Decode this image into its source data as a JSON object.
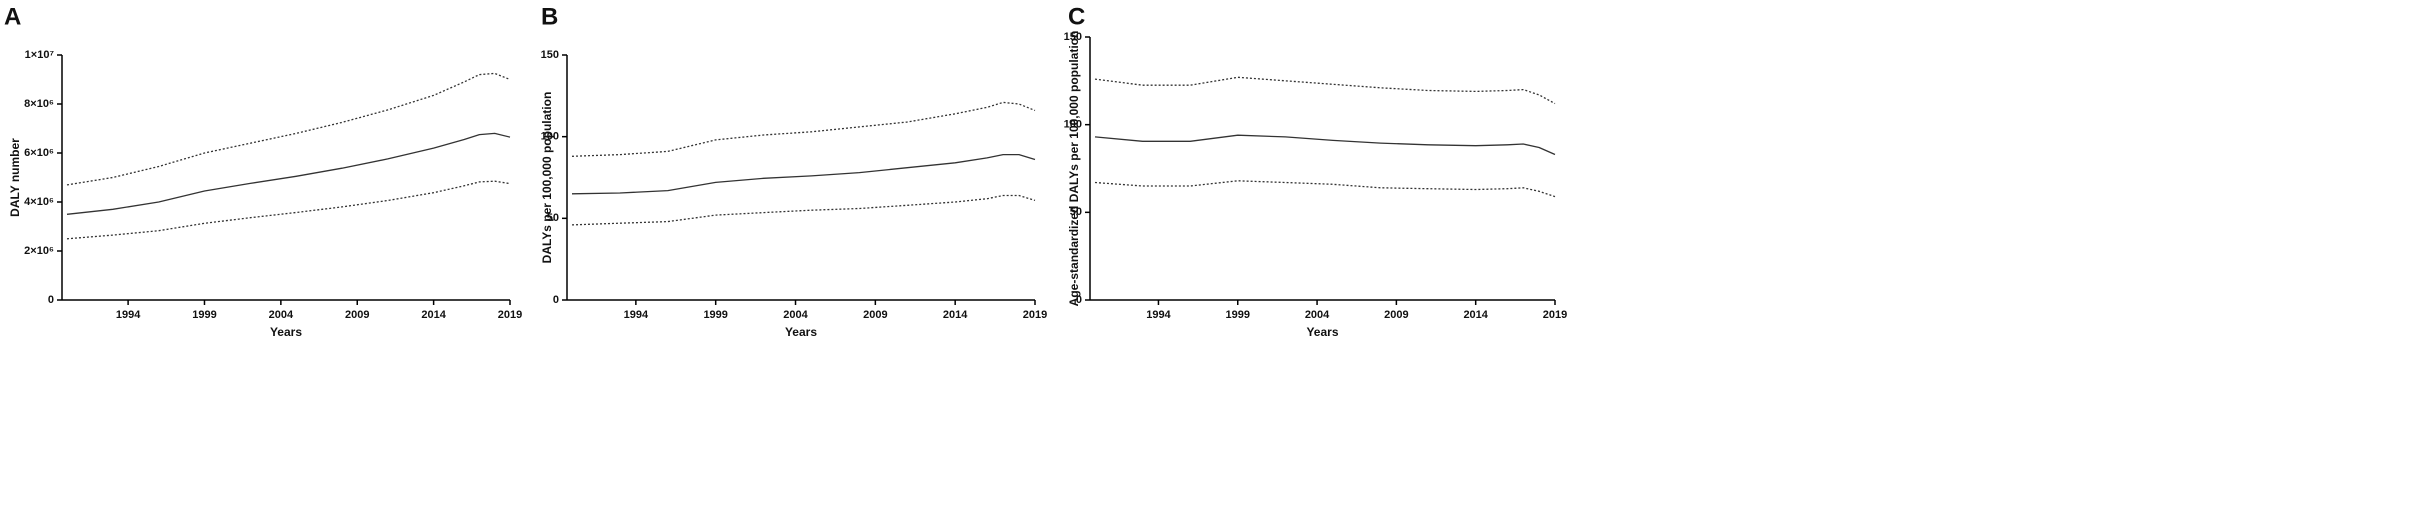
{
  "chart_data": [
    {
      "type": "line",
      "panel_label": "A",
      "x_label": "Years",
      "y_label": "DALY number",
      "x": [
        1990,
        1993,
        1996,
        1999,
        2002,
        2005,
        2008,
        2011,
        2014,
        2016,
        2017,
        2018,
        2019
      ],
      "xlim": [
        1990,
        2019
      ],
      "xticks": [
        1994,
        1999,
        2004,
        2009,
        2014,
        2019
      ],
      "ylim": [
        0,
        10000000
      ],
      "yticks": [
        0,
        {
          "value": 2000000,
          "label": "2×10⁶"
        },
        {
          "value": 4000000,
          "label": "4×10⁶"
        },
        {
          "value": 6000000,
          "label": "6×10⁶"
        },
        {
          "value": 8000000,
          "label": "8×10⁶"
        },
        {
          "value": 10000000,
          "label": "1×10⁷"
        }
      ],
      "series": [
        {
          "color": "#333333",
          "line_style": "dotted",
          "values": [
            4700000,
            5000000,
            5450000,
            6000000,
            6400000,
            6800000,
            7250000,
            7760000,
            8350000,
            8900000,
            9200000,
            9250000,
            9000000
          ]
        },
        {
          "color": "#333333",
          "line_style": "solid",
          "values": [
            3500000,
            3700000,
            4000000,
            4450000,
            4760000,
            5050000,
            5380000,
            5760000,
            6200000,
            6550000,
            6750000,
            6800000,
            6650000
          ]
        },
        {
          "color": "#333333",
          "line_style": "dotted",
          "values": [
            2500000,
            2650000,
            2830000,
            3130000,
            3360000,
            3570000,
            3800000,
            4060000,
            4380000,
            4660000,
            4820000,
            4850000,
            4750000
          ]
        }
      ]
    },
    {
      "type": "line",
      "panel_label": "B",
      "x_label": "Years",
      "y_label": "DALYs per 100,000 population",
      "x": [
        1990,
        1993,
        1996,
        1999,
        2002,
        2005,
        2008,
        2011,
        2014,
        2016,
        2017,
        2018,
        2019
      ],
      "xlim": [
        1990,
        2019
      ],
      "xticks": [
        1994,
        1999,
        2004,
        2009,
        2014,
        2019
      ],
      "ylim": [
        0,
        150
      ],
      "yticks": [
        0,
        50,
        100,
        150
      ],
      "series": [
        {
          "color": "#333333",
          "line_style": "dotted",
          "values": [
            88,
            89,
            91,
            98,
            101,
            103,
            106,
            109,
            114,
            118,
            121,
            120,
            116
          ]
        },
        {
          "color": "#333333",
          "line_style": "solid",
          "values": [
            65,
            65.5,
            67,
            72,
            74.5,
            76,
            78,
            81,
            84,
            87,
            89,
            89,
            86
          ]
        },
        {
          "color": "#333333",
          "line_style": "dotted",
          "values": [
            46,
            47,
            48,
            52,
            53.5,
            55,
            56,
            58,
            60,
            62,
            64,
            64,
            61
          ]
        }
      ]
    },
    {
      "type": "line",
      "panel_label": "C",
      "x_label": "Years",
      "y_label": "Age-standardized DALYs per 100,000 population",
      "x": [
        1990,
        1993,
        1996,
        1999,
        2002,
        2005,
        2008,
        2011,
        2014,
        2016,
        2017,
        2018,
        2019
      ],
      "xlim": [
        1990,
        2019
      ],
      "xticks": [
        1994,
        1999,
        2004,
        2009,
        2014,
        2019
      ],
      "ylim": [
        0,
        150
      ],
      "yticks": [
        0,
        50,
        100,
        150
      ],
      "series": [
        {
          "color": "#333333",
          "line_style": "dotted",
          "values": [
            126,
            122.5,
            122.5,
            127,
            125,
            123,
            121,
            119.5,
            119,
            119.5,
            120,
            117,
            112
          ]
        },
        {
          "color": "#333333",
          "line_style": "solid",
          "values": [
            93,
            90.5,
            90.5,
            94,
            93,
            91,
            89.5,
            88.5,
            88,
            88.5,
            89,
            87,
            83
          ]
        },
        {
          "color": "#333333",
          "line_style": "dotted",
          "values": [
            67,
            65,
            65,
            68,
            67,
            66,
            64,
            63.5,
            63,
            63.5,
            64,
            62,
            59
          ]
        }
      ]
    }
  ]
}
